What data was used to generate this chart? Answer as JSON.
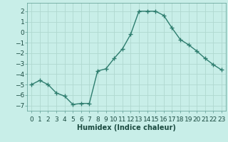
{
  "x": [
    0,
    1,
    2,
    3,
    4,
    5,
    6,
    7,
    8,
    9,
    10,
    11,
    12,
    13,
    14,
    15,
    16,
    17,
    18,
    19,
    20,
    21,
    22,
    23
  ],
  "y": [
    -5.0,
    -4.6,
    -5.0,
    -5.8,
    -6.1,
    -6.9,
    -6.8,
    -6.8,
    -3.7,
    -3.5,
    -2.5,
    -1.6,
    -0.2,
    2.0,
    2.0,
    2.0,
    1.6,
    0.4,
    -0.7,
    -1.2,
    -1.8,
    -2.5,
    -3.1,
    -3.6
  ],
  "line_color": "#2e7d6e",
  "marker": "o",
  "marker_size": 2.0,
  "bg_color": "#c8eee8",
  "grid_color": "#b0d8d0",
  "xlabel": "Humidex (Indice chaleur)",
  "xlim": [
    -0.5,
    23.5
  ],
  "ylim": [
    -7.5,
    2.8
  ],
  "yticks": [
    -7,
    -6,
    -5,
    -4,
    -3,
    -2,
    -1,
    0,
    1,
    2
  ],
  "xtick_labels": [
    "0",
    "1",
    "2",
    "3",
    "4",
    "5",
    "6",
    "7",
    "8",
    "9",
    "10",
    "11",
    "12",
    "13",
    "14",
    "15",
    "16",
    "17",
    "18",
    "19",
    "20",
    "21",
    "22",
    "23"
  ],
  "xlabel_fontsize": 7,
  "tick_fontsize": 6.5,
  "line_width": 1.0,
  "tick_color": "#2e7d6e",
  "label_color": "#1a4a40"
}
